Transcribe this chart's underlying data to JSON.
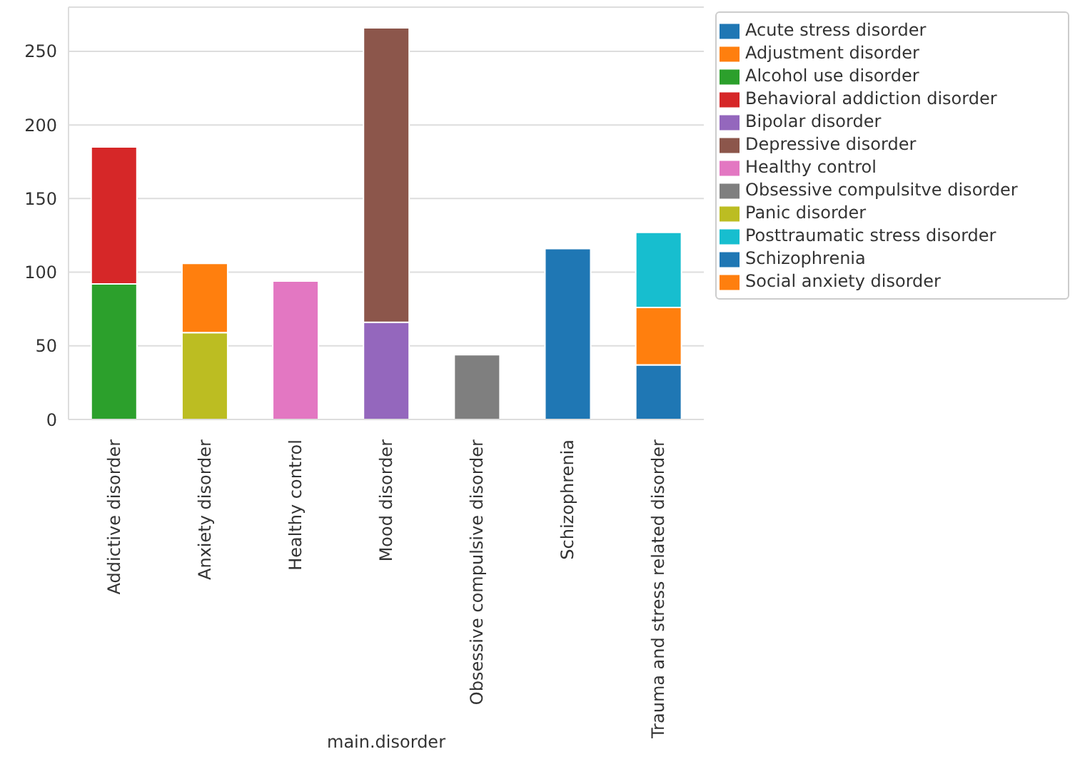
{
  "chart_data": {
    "type": "bar",
    "stacked": true,
    "xlabel": "main.disorder",
    "categories": [
      "Addictive disorder",
      "Anxiety disorder",
      "Healthy control",
      "Mood disorder",
      "Obsessive compulsive disorder",
      "Schizophrenia",
      "Trauma and stress related disorder"
    ],
    "series": [
      {
        "name": "Acute stress disorder",
        "color": "#1f77b4",
        "values": [
          null,
          null,
          null,
          null,
          null,
          null,
          37
        ]
      },
      {
        "name": "Adjustment disorder",
        "color": "#ff7f0e",
        "values": [
          null,
          null,
          null,
          null,
          null,
          null,
          39
        ]
      },
      {
        "name": "Alcohol use disorder",
        "color": "#2ca02c",
        "values": [
          92,
          null,
          null,
          null,
          null,
          null,
          null
        ]
      },
      {
        "name": "Behavioral addiction disorder",
        "color": "#d62728",
        "values": [
          93,
          null,
          null,
          null,
          null,
          null,
          null
        ]
      },
      {
        "name": "Bipolar disorder",
        "color": "#9467bd",
        "values": [
          null,
          null,
          null,
          66,
          null,
          null,
          null
        ]
      },
      {
        "name": "Depressive disorder",
        "color": "#8c564b",
        "values": [
          null,
          null,
          null,
          200,
          null,
          null,
          null
        ]
      },
      {
        "name": "Healthy control",
        "color": "#e377c2",
        "values": [
          null,
          null,
          94,
          null,
          null,
          null,
          null
        ]
      },
      {
        "name": "Obsessive compulsitve disorder",
        "color": "#7f7f7f",
        "values": [
          null,
          null,
          null,
          null,
          44,
          null,
          null
        ]
      },
      {
        "name": "Panic disorder",
        "color": "#bcbd22",
        "values": [
          null,
          59,
          null,
          null,
          null,
          null,
          null
        ]
      },
      {
        "name": "Posttraumatic stress disorder",
        "color": "#17becf",
        "values": [
          null,
          null,
          null,
          null,
          null,
          null,
          51
        ]
      },
      {
        "name": "Schizophrenia",
        "color": "#1f77b4",
        "values": [
          null,
          null,
          null,
          null,
          null,
          116,
          null
        ]
      },
      {
        "name": "Social anxiety disorder",
        "color": "#ff7f0e",
        "values": [
          null,
          47,
          null,
          null,
          null,
          null,
          null
        ]
      }
    ],
    "ylim": [
      0,
      280
    ],
    "yticks": [
      0,
      50,
      100,
      150,
      200,
      250
    ],
    "grid": "y",
    "legend": "top right"
  }
}
